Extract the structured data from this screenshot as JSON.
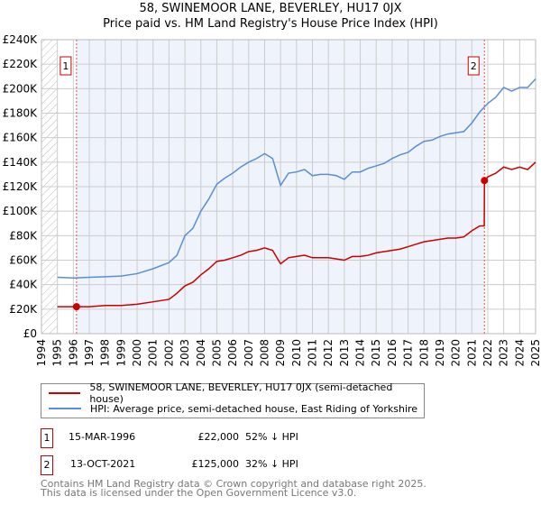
{
  "title": "58, SWINEMOOR LANE, BEVERLEY, HU17 0JX",
  "subtitle": "Price paid vs. HM Land Registry's House Price Index (HPI)",
  "chart_data": {
    "type": "line",
    "title": "58, SWINEMOOR LANE, BEVERLEY, HU17 0JX — Price paid vs. HM Land Registry's House Price Index (HPI)",
    "xlabel": "",
    "ylabel": "",
    "xlim": [
      1994,
      2025
    ],
    "ylim": [
      0,
      240000
    ],
    "x_ticks": [
      "1994",
      "1995",
      "1996",
      "1997",
      "1998",
      "1999",
      "2000",
      "2001",
      "2002",
      "2003",
      "2004",
      "2005",
      "2006",
      "2007",
      "2008",
      "2009",
      "2010",
      "2011",
      "2012",
      "2013",
      "2014",
      "2015",
      "2016",
      "2017",
      "2018",
      "2019",
      "2020",
      "2021",
      "2022",
      "2023",
      "2024",
      "2025"
    ],
    "y_ticks": [
      "£0",
      "£20K",
      "£40K",
      "£60K",
      "£80K",
      "£100K",
      "£120K",
      "£140K",
      "£160K",
      "£180K",
      "£200K",
      "£220K",
      "£240K"
    ],
    "grid": true,
    "colors": {
      "price": "#cc0000",
      "hpi": "#5b8fd4",
      "shade": "#eef3fc",
      "marker": "#cc0000"
    },
    "series": [
      {
        "name": "58, SWINEMOOR LANE, BEVERLEY, HU17 0JX (semi-detached house)",
        "x": [
          1995,
          1996.2,
          1997,
          1998,
          1999,
          2000,
          2001,
          2002,
          2002.5,
          2003,
          2003.5,
          2004,
          2004.5,
          2005,
          2005.5,
          2006,
          2006.5,
          2007,
          2007.5,
          2008,
          2008.5,
          2009,
          2009.5,
          2010,
          2010.5,
          2011,
          2011.5,
          2012,
          2012.5,
          2013,
          2013.5,
          2014,
          2014.5,
          2015,
          2015.5,
          2016,
          2016.5,
          2017,
          2017.5,
          2018,
          2018.5,
          2019,
          2019.5,
          2020,
          2020.5,
          2021,
          2021.5,
          2021.78,
          2021.79,
          2022,
          2022.5,
          2023,
          2023.5,
          2024,
          2024.5,
          2025
        ],
        "values": [
          22000,
          22000,
          22000,
          23000,
          23000,
          24000,
          26000,
          28000,
          33000,
          39000,
          42000,
          48000,
          53000,
          59000,
          60000,
          62000,
          64000,
          67000,
          68000,
          70000,
          68000,
          57000,
          62000,
          63000,
          64000,
          62000,
          62000,
          62000,
          61000,
          60000,
          63000,
          63000,
          64000,
          66000,
          67000,
          68000,
          69000,
          71000,
          73000,
          75000,
          76000,
          77000,
          78000,
          78000,
          79000,
          84000,
          88000,
          88000,
          125000,
          128000,
          131000,
          136000,
          134000,
          136000,
          134000,
          140000
        ]
      },
      {
        "name": "HPI: Average price, semi-detached house, East Riding of Yorkshire",
        "x": [
          1995,
          1996,
          1997,
          1998,
          1999,
          2000,
          2001,
          2002,
          2002.5,
          2003,
          2003.5,
          2004,
          2004.5,
          2005,
          2005.5,
          2006,
          2006.5,
          2007,
          2007.5,
          2008,
          2008.5,
          2009,
          2009.5,
          2010,
          2010.5,
          2011,
          2011.5,
          2012,
          2012.5,
          2013,
          2013.5,
          2014,
          2014.5,
          2015,
          2015.5,
          2016,
          2016.5,
          2017,
          2017.5,
          2018,
          2018.5,
          2019,
          2019.5,
          2020,
          2020.5,
          2021,
          2021.5,
          2022,
          2022.5,
          2023,
          2023.5,
          2024,
          2024.5,
          2025
        ],
        "values": [
          46000,
          45500,
          46000,
          46500,
          47000,
          49000,
          53000,
          58000,
          64000,
          80000,
          86000,
          100000,
          110000,
          122000,
          127000,
          131000,
          136000,
          140000,
          143000,
          147000,
          143000,
          121000,
          131000,
          132000,
          134000,
          129000,
          130000,
          130000,
          129000,
          126000,
          132000,
          132000,
          135000,
          137000,
          139000,
          143000,
          146000,
          148000,
          153000,
          157000,
          158000,
          161000,
          163000,
          164000,
          165000,
          172000,
          181000,
          188000,
          193000,
          201000,
          198000,
          201000,
          201000,
          208000
        ]
      }
    ],
    "annotations": [
      {
        "label": "1",
        "x": 1996.2,
        "y": 22000
      },
      {
        "label": "2",
        "x": 2021.79,
        "y": 125000
      }
    ]
  },
  "legend": {
    "price": "58, SWINEMOOR LANE, BEVERLEY, HU17 0JX (semi-detached house)",
    "hpi": "HPI: Average price, semi-detached house, East Riding of Yorkshire"
  },
  "sales": [
    {
      "num": "1",
      "date": "15-MAR-1996",
      "price": "£22,000",
      "hpi": "52% ↓ HPI"
    },
    {
      "num": "2",
      "date": "13-OCT-2021",
      "price": "£125,000",
      "hpi": "32% ↓ HPI"
    }
  ],
  "footer": {
    "line1": "Contains HM Land Registry data © Crown copyright and database right 2025.",
    "line2": "This data is licensed under the Open Government Licence v3.0."
  }
}
